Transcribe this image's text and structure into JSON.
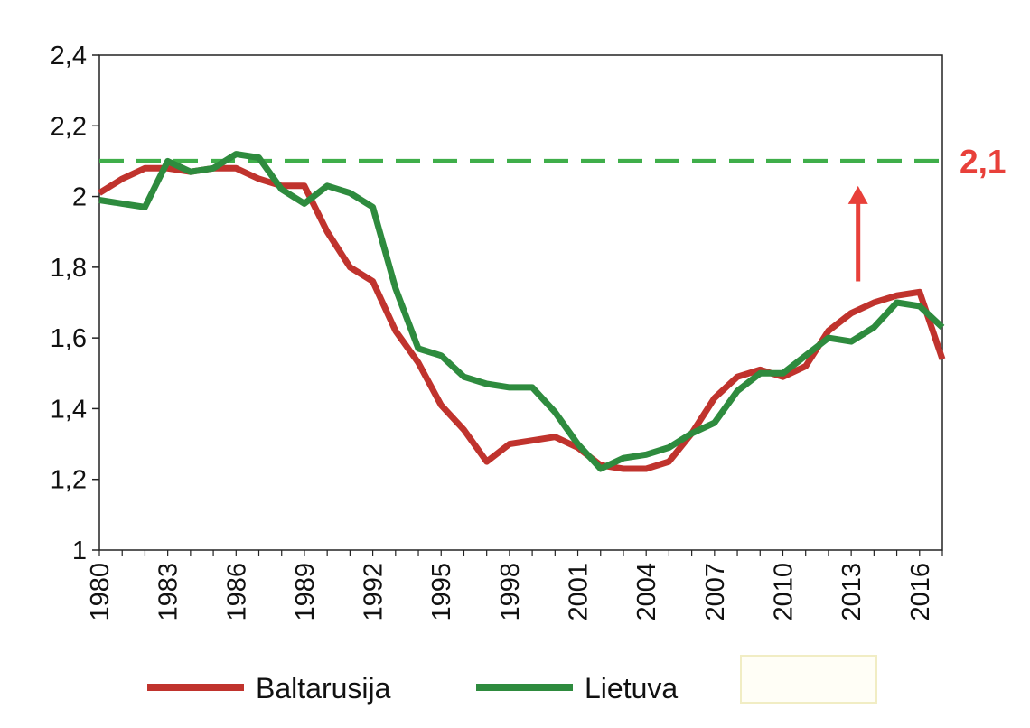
{
  "chart_data": {
    "type": "line",
    "x": [
      1980,
      1981,
      1982,
      1983,
      1984,
      1985,
      1986,
      1987,
      1988,
      1989,
      1990,
      1991,
      1992,
      1993,
      1994,
      1995,
      1996,
      1997,
      1998,
      1999,
      2000,
      2001,
      2002,
      2003,
      2004,
      2005,
      2006,
      2007,
      2008,
      2009,
      2010,
      2011,
      2012,
      2013,
      2014,
      2015,
      2016,
      2017
    ],
    "series": [
      {
        "name": "Baltarusija",
        "color": "#c0332d",
        "values": [
          2.01,
          2.05,
          2.08,
          2.08,
          2.07,
          2.08,
          2.08,
          2.05,
          2.03,
          2.03,
          1.9,
          1.8,
          1.76,
          1.62,
          1.53,
          1.41,
          1.34,
          1.25,
          1.3,
          1.31,
          1.32,
          1.29,
          1.24,
          1.23,
          1.23,
          1.25,
          1.33,
          1.43,
          1.49,
          1.51,
          1.49,
          1.52,
          1.62,
          1.67,
          1.7,
          1.72,
          1.73,
          1.54
        ]
      },
      {
        "name": "Lietuva",
        "color": "#2e8b3e",
        "values": [
          1.99,
          1.98,
          1.97,
          2.1,
          2.07,
          2.08,
          2.12,
          2.11,
          2.02,
          1.98,
          2.03,
          2.01,
          1.97,
          1.74,
          1.57,
          1.55,
          1.49,
          1.47,
          1.46,
          1.46,
          1.39,
          1.3,
          1.23,
          1.26,
          1.27,
          1.29,
          1.33,
          1.36,
          1.45,
          1.5,
          1.5,
          1.55,
          1.6,
          1.59,
          1.63,
          1.7,
          1.69,
          1.63
        ]
      }
    ],
    "ylim": [
      1,
      2.4
    ],
    "yticks": [
      "1",
      "1,2",
      "1,4",
      "1,6",
      "1,8",
      "2",
      "2,2",
      "2,4"
    ],
    "xticks": [
      "1980",
      "1983",
      "1986",
      "1989",
      "1992",
      "1995",
      "1998",
      "2001",
      "2004",
      "2007",
      "2010",
      "2013",
      "2016"
    ],
    "reference_line": {
      "value": 2.1,
      "label": "2,1",
      "label_color": "#e8403a",
      "line_color": "#3fae4a",
      "style": "dashed"
    },
    "arrow": {
      "color": "#e8403a",
      "x": 2013.3,
      "from": 1.76,
      "to": 2.03
    },
    "grid": false,
    "legend_position": "bottom"
  }
}
